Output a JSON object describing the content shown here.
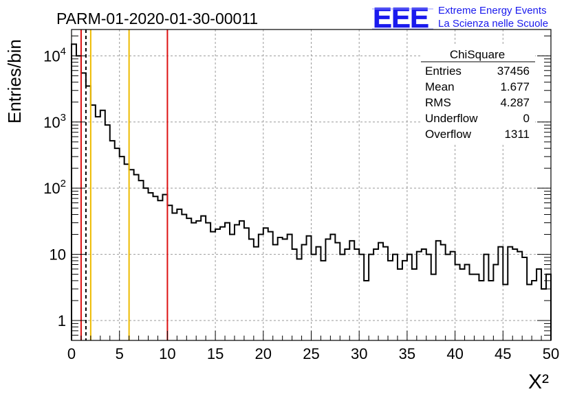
{
  "header": {
    "run_title": "PARM-01-2020-01-30-00011",
    "logo_text": "EEE",
    "logo_line1": "Extreme Energy Events",
    "logo_line2": "La Scienza nelle Scuole"
  },
  "colors": {
    "histogram": "#000000",
    "red_lines": "#dd1111",
    "yellow_lines": "#eebb00",
    "dashed_line": "#000000",
    "logo": "#1a1aee",
    "grid": "#999999"
  },
  "stats_box": {
    "title": "ChiSquare",
    "rows": [
      {
        "label": "Entries",
        "value": "37456"
      },
      {
        "label": "Mean",
        "value": "1.677"
      },
      {
        "label": "RMS",
        "value": "4.287"
      },
      {
        "label": "Underflow",
        "value": "0"
      },
      {
        "label": "Overflow",
        "value": "1311"
      }
    ]
  },
  "chart_data": {
    "type": "bar",
    "style": "step-histogram",
    "title": "PARM-01-2020-01-30-00011",
    "xlabel": "X²",
    "ylabel": "Entries/bin",
    "xlim": [
      0,
      50
    ],
    "ylim": [
      0.5,
      25000
    ],
    "y_scale": "log",
    "grid": true,
    "bin_width": 0.5,
    "x_ticks": [
      0,
      5,
      10,
      15,
      20,
      25,
      30,
      35,
      40,
      45,
      50
    ],
    "x_tick_labels": [
      "0",
      "5",
      "10",
      "15",
      "20",
      "25",
      "30",
      "35",
      "40",
      "45",
      "50"
    ],
    "y_ticks": [
      {
        "value": 1,
        "label": "1",
        "sup": ""
      },
      {
        "value": 10,
        "label": "10",
        "sup": ""
      },
      {
        "value": 100,
        "label": "10",
        "sup": "2"
      },
      {
        "value": 1000,
        "label": "10",
        "sup": "3"
      },
      {
        "value": 10000,
        "label": "10",
        "sup": "4"
      }
    ],
    "values": [
      15000,
      10000,
      5500,
      3500,
      1800,
      1200,
      1500,
      900,
      520,
      400,
      300,
      230,
      190,
      160,
      130,
      100,
      85,
      75,
      65,
      80,
      55,
      42,
      48,
      40,
      35,
      30,
      32,
      38,
      30,
      22,
      24,
      26,
      30,
      20,
      28,
      32,
      25,
      17,
      13,
      20,
      25,
      22,
      14,
      18,
      17,
      20,
      12,
      8.5,
      14,
      19,
      10,
      13,
      8,
      17,
      20,
      15,
      10,
      12,
      16,
      12,
      10,
      4,
      10,
      12,
      15,
      13,
      8,
      10,
      6,
      8,
      10,
      6,
      11,
      12,
      10,
      5,
      16,
      14,
      10,
      11,
      7,
      6,
      7,
      5,
      5,
      4,
      10,
      4,
      7,
      13,
      3.5,
      13,
      12,
      11,
      9,
      3.5,
      4,
      6,
      3,
      5
    ],
    "markers": [
      {
        "x": 1,
        "style": "red"
      },
      {
        "x": 1.5,
        "style": "dashed"
      },
      {
        "x": 2,
        "style": "yellow"
      },
      {
        "x": 6,
        "style": "yellow"
      },
      {
        "x": 10,
        "style": "red"
      }
    ]
  }
}
